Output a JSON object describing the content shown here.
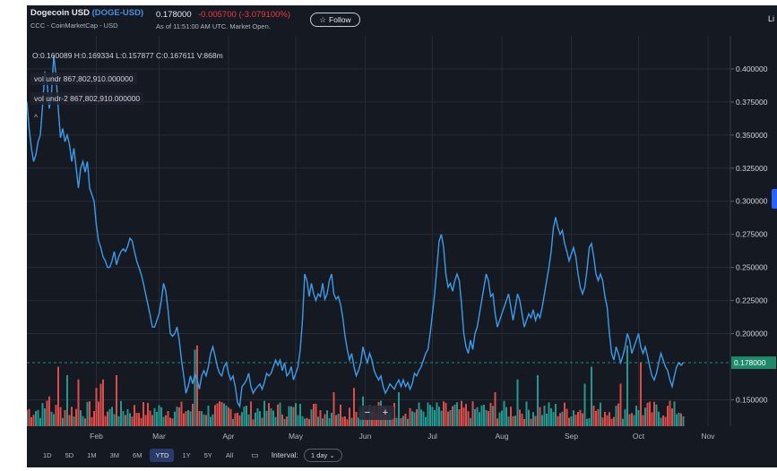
{
  "header": {
    "name": "Dogecoin USD",
    "symbol": "(DOGE-USD)",
    "source": "CCC - CoinMarketCap - USD",
    "price": "0.178000",
    "change": "-0.005700",
    "change_pct": "(-3.079100%)",
    "as_of": "As of 11:51:00 AM UTC. Market Open.",
    "follow_label": "Follow",
    "follow_icon": "star-outline-icon",
    "right_clip": "Li"
  },
  "legend": {
    "ohlc": "O:0.160089  H:0.169334  L:0.157877  C:0.167611  V:868m",
    "vol1": "vol undr  867,802,910.000000",
    "vol2": "vol undr-2  867,802,910.000000",
    "collapse": "^"
  },
  "controls": {
    "zoom_out": "−",
    "zoom_in": "+",
    "ranges": [
      "1D",
      "5D",
      "1M",
      "3M",
      "6M",
      "YTD",
      "1Y",
      "5Y",
      "All"
    ],
    "active_range": "YTD",
    "calendar_icon": "calendar-icon",
    "interval_label": "Interval:",
    "interval_value": "1 day",
    "interval_icon": "chevron-down-icon"
  },
  "chart_data": {
    "type": "line",
    "price_color": "#3d9be9",
    "up_color": "#26a69a",
    "down_color": "#ef5350",
    "y_ticks": [
      "0.400000",
      "0.375000",
      "0.350000",
      "0.325000",
      "0.300000",
      "0.275000",
      "0.250000",
      "0.225000",
      "0.200000",
      "0.178000",
      "0.150000"
    ],
    "ylim": [
      0.13,
      0.425
    ],
    "x_ticks": [
      "Feb",
      "Mar",
      "Apr",
      "May",
      "Jun",
      "Jul",
      "Aug",
      "Sep",
      "Oct",
      "Nov"
    ],
    "x_tick_days": [
      31,
      59,
      90,
      120,
      151,
      181,
      212,
      243,
      273,
      304
    ],
    "xlim": [
      0,
      314
    ],
    "last_price": 0.178,
    "last_price_label": "0.178000",
    "price_series": [
      [
        0,
        0.375
      ],
      [
        1,
        0.355
      ],
      [
        2,
        0.34
      ],
      [
        3,
        0.33
      ],
      [
        4,
        0.335
      ],
      [
        5,
        0.345
      ],
      [
        6,
        0.35
      ],
      [
        7,
        0.372
      ],
      [
        8,
        0.398
      ],
      [
        9,
        0.39
      ],
      [
        10,
        0.37
      ],
      [
        11,
        0.382
      ],
      [
        12,
        0.41
      ],
      [
        13,
        0.395
      ],
      [
        14,
        0.37
      ],
      [
        15,
        0.348
      ],
      [
        16,
        0.355
      ],
      [
        17,
        0.345
      ],
      [
        18,
        0.35
      ],
      [
        19,
        0.343
      ],
      [
        20,
        0.33
      ],
      [
        21,
        0.34
      ],
      [
        22,
        0.325
      ],
      [
        23,
        0.31
      ],
      [
        24,
        0.325
      ],
      [
        25,
        0.33
      ],
      [
        26,
        0.322
      ],
      [
        27,
        0.33
      ],
      [
        28,
        0.31
      ],
      [
        29,
        0.305
      ],
      [
        30,
        0.3
      ],
      [
        31,
        0.282
      ],
      [
        32,
        0.27
      ],
      [
        33,
        0.265
      ],
      [
        34,
        0.258
      ],
      [
        35,
        0.255
      ],
      [
        36,
        0.25
      ],
      [
        37,
        0.25
      ],
      [
        38,
        0.255
      ],
      [
        39,
        0.262
      ],
      [
        40,
        0.252
      ],
      [
        41,
        0.258
      ],
      [
        42,
        0.262
      ],
      [
        43,
        0.264
      ],
      [
        44,
        0.262
      ],
      [
        45,
        0.266
      ],
      [
        46,
        0.272
      ],
      [
        47,
        0.27
      ],
      [
        48,
        0.262
      ],
      [
        49,
        0.255
      ],
      [
        50,
        0.25
      ],
      [
        51,
        0.245
      ],
      [
        52,
        0.238
      ],
      [
        53,
        0.23
      ],
      [
        54,
        0.222
      ],
      [
        55,
        0.214
      ],
      [
        56,
        0.205
      ],
      [
        57,
        0.205
      ],
      [
        58,
        0.21
      ],
      [
        59,
        0.215
      ],
      [
        60,
        0.225
      ],
      [
        61,
        0.238
      ],
      [
        62,
        0.232
      ],
      [
        63,
        0.218
      ],
      [
        64,
        0.2
      ],
      [
        65,
        0.198
      ],
      [
        66,
        0.2
      ],
      [
        67,
        0.205
      ],
      [
        68,
        0.195
      ],
      [
        69,
        0.18
      ],
      [
        70,
        0.168
      ],
      [
        71,
        0.155
      ],
      [
        72,
        0.16
      ],
      [
        73,
        0.168
      ],
      [
        74,
        0.162
      ],
      [
        75,
        0.17
      ],
      [
        76,
        0.165
      ],
      [
        77,
        0.158
      ],
      [
        78,
        0.168
      ],
      [
        79,
        0.172
      ],
      [
        80,
        0.168
      ],
      [
        81,
        0.175
      ],
      [
        82,
        0.185
      ],
      [
        83,
        0.19
      ],
      [
        84,
        0.183
      ],
      [
        85,
        0.175
      ],
      [
        86,
        0.17
      ],
      [
        87,
        0.168
      ],
      [
        88,
        0.175
      ],
      [
        89,
        0.178
      ],
      [
        90,
        0.17
      ],
      [
        91,
        0.165
      ],
      [
        92,
        0.168
      ],
      [
        93,
        0.16
      ],
      [
        94,
        0.148
      ],
      [
        95,
        0.145
      ],
      [
        96,
        0.16
      ],
      [
        97,
        0.162
      ],
      [
        98,
        0.165
      ],
      [
        99,
        0.17
      ],
      [
        100,
        0.16
      ],
      [
        101,
        0.155
      ],
      [
        102,
        0.158
      ],
      [
        103,
        0.16
      ],
      [
        104,
        0.162
      ],
      [
        105,
        0.158
      ],
      [
        106,
        0.163
      ],
      [
        107,
        0.17
      ],
      [
        108,
        0.168
      ],
      [
        109,
        0.17
      ],
      [
        110,
        0.175
      ],
      [
        111,
        0.18
      ],
      [
        112,
        0.176
      ],
      [
        113,
        0.18
      ],
      [
        114,
        0.172
      ],
      [
        115,
        0.178
      ],
      [
        116,
        0.168
      ],
      [
        117,
        0.17
      ],
      [
        118,
        0.175
      ],
      [
        119,
        0.165
      ],
      [
        120,
        0.17
      ],
      [
        121,
        0.175
      ],
      [
        122,
        0.188
      ],
      [
        123,
        0.21
      ],
      [
        124,
        0.245
      ],
      [
        125,
        0.24
      ],
      [
        126,
        0.228
      ],
      [
        127,
        0.238
      ],
      [
        128,
        0.23
      ],
      [
        129,
        0.225
      ],
      [
        130,
        0.23
      ],
      [
        131,
        0.228
      ],
      [
        132,
        0.238
      ],
      [
        133,
        0.226
      ],
      [
        134,
        0.23
      ],
      [
        135,
        0.24
      ],
      [
        136,
        0.245
      ],
      [
        137,
        0.23
      ],
      [
        138,
        0.226
      ],
      [
        139,
        0.228
      ],
      [
        140,
        0.222
      ],
      [
        141,
        0.212
      ],
      [
        142,
        0.198
      ],
      [
        143,
        0.188
      ],
      [
        144,
        0.18
      ],
      [
        145,
        0.185
      ],
      [
        146,
        0.175
      ],
      [
        147,
        0.168
      ],
      [
        148,
        0.172
      ],
      [
        149,
        0.178
      ],
      [
        150,
        0.19
      ],
      [
        151,
        0.183
      ],
      [
        152,
        0.178
      ],
      [
        153,
        0.185
      ],
      [
        154,
        0.18
      ],
      [
        155,
        0.172
      ],
      [
        156,
        0.168
      ],
      [
        157,
        0.165
      ],
      [
        158,
        0.168
      ],
      [
        159,
        0.16
      ],
      [
        160,
        0.155
      ],
      [
        161,
        0.158
      ],
      [
        162,
        0.162
      ],
      [
        163,
        0.16
      ],
      [
        164,
        0.158
      ],
      [
        165,
        0.162
      ],
      [
        166,
        0.165
      ],
      [
        167,
        0.16
      ],
      [
        168,
        0.165
      ],
      [
        169,
        0.16
      ],
      [
        170,
        0.163
      ],
      [
        171,
        0.158
      ],
      [
        172,
        0.162
      ],
      [
        173,
        0.17
      ],
      [
        174,
        0.168
      ],
      [
        175,
        0.172
      ],
      [
        176,
        0.175
      ],
      [
        177,
        0.18
      ],
      [
        178,
        0.185
      ],
      [
        179,
        0.188
      ],
      [
        180,
        0.2
      ],
      [
        181,
        0.215
      ],
      [
        182,
        0.23
      ],
      [
        183,
        0.25
      ],
      [
        184,
        0.27
      ],
      [
        185,
        0.275
      ],
      [
        186,
        0.265
      ],
      [
        187,
        0.245
      ],
      [
        188,
        0.235
      ],
      [
        189,
        0.238
      ],
      [
        190,
        0.232
      ],
      [
        191,
        0.24
      ],
      [
        192,
        0.245
      ],
      [
        193,
        0.24
      ],
      [
        194,
        0.222
      ],
      [
        195,
        0.2
      ],
      [
        196,
        0.19
      ],
      [
        197,
        0.185
      ],
      [
        198,
        0.195
      ],
      [
        199,
        0.188
      ],
      [
        200,
        0.2
      ],
      [
        201,
        0.205
      ],
      [
        202,
        0.215
      ],
      [
        203,
        0.225
      ],
      [
        204,
        0.235
      ],
      [
        205,
        0.245
      ],
      [
        206,
        0.24
      ],
      [
        207,
        0.228
      ],
      [
        208,
        0.23
      ],
      [
        209,
        0.215
      ],
      [
        210,
        0.205
      ],
      [
        211,
        0.21
      ],
      [
        212,
        0.215
      ],
      [
        213,
        0.22
      ],
      [
        214,
        0.225
      ],
      [
        215,
        0.23
      ],
      [
        216,
        0.22
      ],
      [
        217,
        0.21
      ],
      [
        218,
        0.22
      ],
      [
        219,
        0.23
      ],
      [
        220,
        0.225
      ],
      [
        221,
        0.215
      ],
      [
        222,
        0.205
      ],
      [
        223,
        0.21
      ],
      [
        224,
        0.215
      ],
      [
        225,
        0.212
      ],
      [
        226,
        0.218
      ],
      [
        227,
        0.21
      ],
      [
        228,
        0.215
      ],
      [
        229,
        0.212
      ],
      [
        230,
        0.22
      ],
      [
        231,
        0.23
      ],
      [
        232,
        0.24
      ],
      [
        233,
        0.25
      ],
      [
        234,
        0.262
      ],
      [
        235,
        0.28
      ],
      [
        236,
        0.288
      ],
      [
        237,
        0.28
      ],
      [
        238,
        0.275
      ],
      [
        239,
        0.278
      ],
      [
        240,
        0.268
      ],
      [
        241,
        0.262
      ],
      [
        242,
        0.255
      ],
      [
        243,
        0.26
      ],
      [
        244,
        0.265
      ],
      [
        245,
        0.258
      ],
      [
        246,
        0.245
      ],
      [
        247,
        0.235
      ],
      [
        248,
        0.23
      ],
      [
        249,
        0.235
      ],
      [
        250,
        0.248
      ],
      [
        251,
        0.265
      ],
      [
        252,
        0.268
      ],
      [
        253,
        0.258
      ],
      [
        254,
        0.245
      ],
      [
        255,
        0.24
      ],
      [
        256,
        0.245
      ],
      [
        257,
        0.24
      ],
      [
        258,
        0.228
      ],
      [
        259,
        0.22
      ],
      [
        260,
        0.2
      ],
      [
        261,
        0.185
      ],
      [
        262,
        0.18
      ],
      [
        263,
        0.19
      ],
      [
        264,
        0.185
      ],
      [
        265,
        0.178
      ],
      [
        266,
        0.183
      ],
      [
        267,
        0.19
      ],
      [
        268,
        0.2
      ],
      [
        269,
        0.195
      ],
      [
        270,
        0.185
      ],
      [
        271,
        0.19
      ],
      [
        272,
        0.195
      ],
      [
        273,
        0.2
      ],
      [
        274,
        0.19
      ],
      [
        275,
        0.185
      ],
      [
        276,
        0.19
      ],
      [
        277,
        0.183
      ],
      [
        278,
        0.175
      ],
      [
        279,
        0.168
      ],
      [
        280,
        0.165
      ],
      [
        281,
        0.17
      ],
      [
        282,
        0.178
      ],
      [
        283,
        0.185
      ],
      [
        284,
        0.18
      ],
      [
        285,
        0.175
      ],
      [
        286,
        0.172
      ],
      [
        287,
        0.165
      ],
      [
        288,
        0.16
      ],
      [
        289,
        0.168
      ],
      [
        290,
        0.175
      ],
      [
        291,
        0.178
      ],
      [
        292,
        0.176
      ],
      [
        293,
        0.178
      ]
    ],
    "volume_tall": [
      [
        9,
        0.3
      ],
      [
        10,
        0.35
      ],
      [
        14,
        0.7
      ],
      [
        18,
        0.6
      ],
      [
        23,
        0.55
      ],
      [
        31,
        0.45
      ],
      [
        33,
        0.5
      ],
      [
        34,
        0.55
      ],
      [
        40,
        0.6
      ],
      [
        75,
        0.4
      ],
      [
        75,
        0.9
      ],
      [
        76,
        0.95
      ],
      [
        137,
        0.4
      ],
      [
        146,
        0.45
      ],
      [
        150,
        0.35
      ],
      [
        158,
        0.3
      ],
      [
        166,
        0.4
      ],
      [
        180,
        0.25
      ],
      [
        209,
        0.4
      ],
      [
        219,
        0.55
      ],
      [
        228,
        0.6
      ],
      [
        249,
        0.5
      ],
      [
        252,
        0.7
      ],
      [
        265,
        0.5
      ],
      [
        268,
        0.95
      ],
      [
        274,
        0.75
      ],
      [
        287,
        0.3
      ]
    ],
    "volume_ylim": [
      0,
      1
    ]
  }
}
